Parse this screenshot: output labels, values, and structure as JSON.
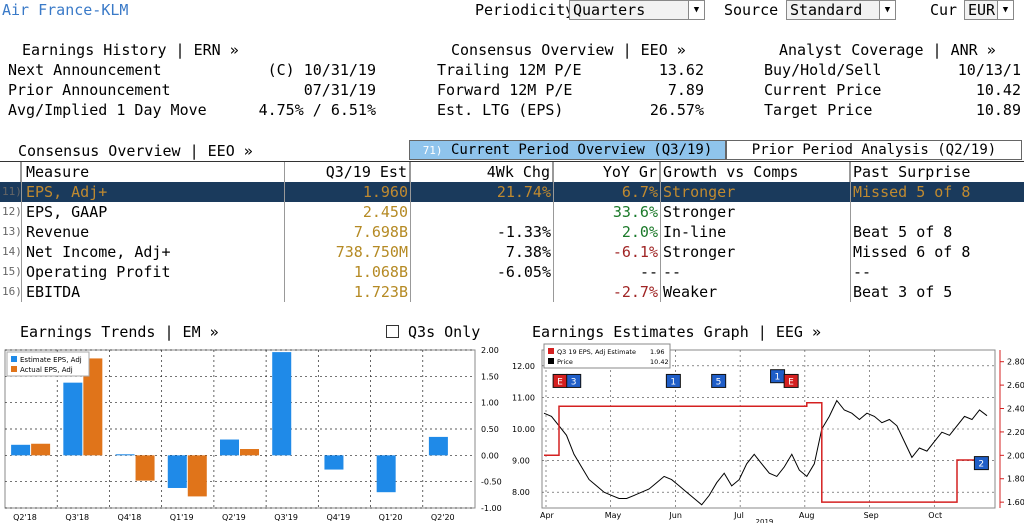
{
  "header": {
    "company": "Air France-KLM",
    "periodicity_label": "Periodicity",
    "periodicity_value": "Quarters",
    "source_label": "Source",
    "source_value": "Standard",
    "cur_label": "Cur",
    "cur_value": "EUR"
  },
  "earnings_history": {
    "title": "Earnings History | ERN »",
    "rows": [
      {
        "label": "Next Announcement",
        "value": "(C)  10/31/19"
      },
      {
        "label": "Prior Announcement",
        "value": "07/31/19"
      },
      {
        "label": "Avg/Implied 1 Day Move",
        "value": "4.75% / 6.51%"
      }
    ]
  },
  "consensus_top": {
    "title": "Consensus Overview | EEO »",
    "rows": [
      {
        "label": "Trailing 12M P/E",
        "value": "13.62"
      },
      {
        "label": "Forward 12M P/E",
        "value": "7.89"
      },
      {
        "label": "Est. LTG (EPS)",
        "value": "26.57%"
      }
    ]
  },
  "analyst": {
    "title": "Analyst Coverage | ANR »",
    "rows": [
      {
        "label": "Buy/Hold/Sell",
        "value": "10/13/1"
      },
      {
        "label": "Current Price",
        "value": "10.42"
      },
      {
        "label": "Target Price",
        "value": "10.89"
      }
    ]
  },
  "consensus_table": {
    "title": "Consensus Overview | EEO »",
    "tab_current_num": "71)",
    "tab_current": "Current Period Overview (Q3/19)",
    "tab_prior": "Prior Period Analysis (Q2/19)",
    "columns": [
      "Measure",
      "Q3/19 Est",
      "4Wk Chg",
      "YoY Gr",
      "Growth vs Comps",
      "Past Surprise"
    ],
    "rows": [
      {
        "idx": "11)",
        "measure": "EPS, Adj+",
        "est": "1.960",
        "chg": "21.74%",
        "yoy": "6.7%",
        "growth": "Stronger",
        "surprise": "Missed 5 of 8"
      },
      {
        "idx": "12)",
        "measure": "EPS, GAAP",
        "est": "2.450",
        "chg": "",
        "yoy": "33.6%",
        "growth": "Stronger",
        "surprise": ""
      },
      {
        "idx": "13)",
        "measure": "Revenue",
        "est": "7.698B",
        "chg": "-1.33%",
        "yoy": "2.0%",
        "growth": "In-line",
        "surprise": "Beat 5 of 8"
      },
      {
        "idx": "14)",
        "measure": "Net Income, Adj+",
        "est": "738.750M",
        "chg": "7.38%",
        "yoy": "-6.1%",
        "growth": "Stronger",
        "surprise": "Missed 6 of 8"
      },
      {
        "idx": "15)",
        "measure": "Operating Profit",
        "est": "1.068B",
        "chg": "-6.05%",
        "yoy": "--",
        "growth": "--",
        "surprise": "--"
      },
      {
        "idx": "16)",
        "measure": "EBITDA",
        "est": "1.723B",
        "chg": "",
        "yoy": "-2.7%",
        "growth": "Weaker",
        "surprise": "Beat 3 of 5"
      }
    ]
  },
  "earnings_trends": {
    "title": "Earnings Trends | EM »",
    "q3s_only": "Q3s Only"
  },
  "estimates_graph": {
    "title": "Earnings Estimates Graph | EEG »"
  },
  "chart_data": [
    {
      "type": "bar",
      "categories": [
        "Q2'18",
        "Q3'18",
        "Q4'18",
        "Q1'19",
        "Q2'19",
        "Q3'19",
        "Q4'19",
        "Q1'20",
        "Q2'20"
      ],
      "series": [
        {
          "name": "Estimate EPS, Adj",
          "color": "#1f8ae8",
          "values": [
            0.2,
            1.38,
            0.02,
            -0.62,
            0.3,
            1.96,
            -0.27,
            -0.7,
            0.35
          ]
        },
        {
          "name": "Actual EPS, Adj",
          "color": "#e0741a",
          "values": [
            0.22,
            1.84,
            -0.48,
            -0.78,
            0.12,
            null,
            null,
            null,
            null
          ]
        }
      ],
      "yticks": [
        "2.00",
        "1.50",
        "1.00",
        "0.50",
        "0.00",
        "-0.50",
        "-1.00"
      ],
      "ylim": [
        -1.0,
        2.0
      ]
    },
    {
      "type": "line",
      "legend": [
        {
          "name": "Q3 19 EPS, Adj Estimate",
          "value": "1.96",
          "color": "#d42020"
        },
        {
          "name": "Price",
          "value": "10.42",
          "color": "#000000"
        }
      ],
      "xticks": [
        "Apr",
        "May",
        "Jun",
        "Jul",
        "Aug",
        "Sep",
        "Oct"
      ],
      "xlabel_year": "2019",
      "left_ticks": [
        "12.00",
        "11.00",
        "10.00",
        "9.00",
        "8.00"
      ],
      "right_ticks": [
        "2.80",
        "2.60",
        "2.40",
        "2.20",
        "2.00",
        "1.80",
        "1.60"
      ],
      "left_lim": [
        7.5,
        12.5
      ],
      "right_lim": [
        1.55,
        2.9
      ],
      "price": [
        10.5,
        10.4,
        10.1,
        9.8,
        9.2,
        8.8,
        8.4,
        8.2,
        8.0,
        7.9,
        7.8,
        7.8,
        7.9,
        8.0,
        8.1,
        8.3,
        8.5,
        8.4,
        8.2,
        8.0,
        7.8,
        7.6,
        7.9,
        8.3,
        8.6,
        8.2,
        8.4,
        8.9,
        9.2,
        8.9,
        8.6,
        8.5,
        8.8,
        9.2,
        8.7,
        8.5,
        8.9,
        10.0,
        10.4,
        10.9,
        10.6,
        10.5,
        10.3,
        10.5,
        10.4,
        10.2,
        10.3,
        10.1,
        9.6,
        9.1,
        9.4,
        9.3,
        9.6,
        9.9,
        9.8,
        10.1,
        10.4,
        10.3,
        10.6,
        10.42
      ],
      "estimate": [
        2.0,
        2.0,
        2.42,
        2.42,
        2.42,
        2.42,
        2.42,
        2.42,
        2.42,
        2.42,
        2.42,
        2.42,
        2.42,
        2.42,
        2.42,
        2.42,
        2.42,
        2.42,
        2.42,
        2.42,
        2.42,
        2.42,
        2.42,
        2.42,
        2.42,
        2.42,
        2.42,
        2.42,
        2.42,
        2.42,
        2.42,
        2.42,
        2.42,
        2.42,
        2.42,
        2.45,
        2.45,
        1.6,
        1.6,
        1.6,
        1.6,
        1.6,
        1.6,
        1.6,
        1.6,
        1.6,
        1.6,
        1.6,
        1.6,
        1.6,
        1.6,
        1.6,
        1.6,
        1.6,
        1.6,
        1.96,
        1.96,
        1.96,
        1.96,
        1.96
      ],
      "event_markers": [
        "E",
        "3",
        "1",
        "5",
        "1",
        "E",
        "2"
      ]
    }
  ]
}
